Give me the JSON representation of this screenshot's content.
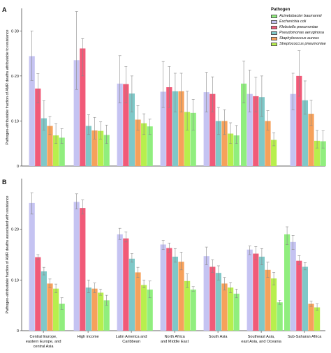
{
  "chart_data": [
    {
      "type": "bar",
      "panel_label": "A",
      "ylabel": "Pathogen-attributable fraction of AMR deaths attributable to resistance",
      "ylim": [
        0,
        0.35
      ],
      "yticks": [
        "0",
        "0·10",
        "0·20",
        "0·30"
      ],
      "categories": [
        "Central Europe, eastern Europe, and central Asia",
        "High income",
        "Latin America and Caribbean",
        "North Africa and Middle East",
        "South Asia",
        "Southeast Asia, east Asia, and Oceania",
        "Sub-Saharan Africa"
      ],
      "series": [
        {
          "name": "Acinetobacter baumannii",
          "values": [
            0,
            0,
            0,
            0,
            0,
            0.183,
            0
          ]
        },
        {
          "name": "Escherichia coli",
          "values": [
            0.244,
            0.235,
            0.183,
            0.165,
            0.164,
            0.16,
            0.16
          ]
        },
        {
          "name": "Klebsiella pneumoniae",
          "values": [
            0.172,
            0.261,
            0.182,
            0.175,
            0.16,
            0.155,
            0.2
          ]
        },
        {
          "name": "Pseudomonas aeruginosa",
          "values": [
            0.106,
            0.089,
            0.161,
            0.166,
            0.1,
            0.153,
            0.146
          ]
        },
        {
          "name": "Staphylococcus aureus",
          "values": [
            0.089,
            0.079,
            0.103,
            0.166,
            0.1,
            0.1,
            0.116
          ]
        },
        {
          "name": "Streptococcus pneumoniae",
          "values": [
            0.068,
            0.078,
            0.095,
            0.12,
            0.072,
            0.058,
            0.056
          ]
        },
        {
          "name": "",
          "values": [
            0.063,
            0.069,
            0.088,
            0.118,
            0.068,
            0,
            0.055
          ]
        }
      ],
      "error_low": [
        [
          0,
          0,
          0,
          0,
          0,
          0.14,
          0
        ],
        [
          0.19,
          0.17,
          0.14,
          0.13,
          0.12,
          0.12,
          0.125
        ],
        [
          0.14,
          0.2,
          0.14,
          0.13,
          0.12,
          0.12,
          0.155
        ],
        [
          0.08,
          0.07,
          0.12,
          0.12,
          0.07,
          0.11,
          0.115
        ],
        [
          0.07,
          0.06,
          0.08,
          0.12,
          0.07,
          0.08,
          0.09
        ],
        [
          0.05,
          0.06,
          0.07,
          0.08,
          0.05,
          0.045,
          0.04
        ],
        [
          0.05,
          0.05,
          0.07,
          0.08,
          0.05,
          0,
          0.04
        ]
      ],
      "error_high": [
        [
          0,
          0,
          0,
          0,
          0,
          0.233,
          0
        ],
        [
          0.3,
          0.343,
          0.245,
          0.232,
          0.208,
          0.213,
          0.206
        ],
        [
          0.205,
          0.283,
          0.221,
          0.221,
          0.198,
          0.197,
          0.256
        ],
        [
          0.145,
          0.114,
          0.2,
          0.206,
          0.13,
          0.2,
          0.189
        ],
        [
          0.11,
          0.108,
          0.134,
          0.206,
          0.125,
          0.123,
          0.146
        ],
        [
          0.094,
          0.098,
          0.116,
          0.166,
          0.096,
          0.074,
          0.079
        ],
        [
          0.083,
          0.091,
          0.104,
          0.148,
          0.09,
          0,
          0.078
        ]
      ]
    },
    {
      "type": "bar",
      "panel_label": "B",
      "ylabel": "Pathogen-attributable fraction of AMR deaths associated with resistance",
      "ylim": [
        0,
        0.3
      ],
      "yticks": [
        "0",
        "0·10",
        "0·20"
      ],
      "categories": [
        "Central Europe, eastern Europe, and central Asia",
        "High income",
        "Latin America and Caribbean",
        "North Africa and Middle East",
        "South Asia",
        "Southeast Asia, east Asia, and Oceania",
        "Sub-Saharan Africa"
      ],
      "series": [
        {
          "name": "Acinetobacter baumannii",
          "values": [
            0,
            0,
            0,
            0,
            0,
            0,
            0.19
          ]
        },
        {
          "name": "Escherichia coli",
          "values": [
            0.252,
            0.254,
            0.19,
            0.17,
            0.147,
            0.16,
            0.175
          ]
        },
        {
          "name": "Klebsiella pneumoniae",
          "values": [
            0.145,
            0.242,
            0.182,
            0.163,
            0.126,
            0.152,
            0.138
          ]
        },
        {
          "name": "Pseudomonas aeruginosa",
          "values": [
            0.117,
            0.085,
            0.142,
            0.146,
            0.114,
            0.146,
            0.126
          ]
        },
        {
          "name": "Staphylococcus aureus",
          "values": [
            0.093,
            0.083,
            0.115,
            0.136,
            0.093,
            0.12,
            0.053
          ]
        },
        {
          "name": "Streptococcus pneumoniae",
          "values": [
            0.083,
            0.075,
            0.09,
            0.098,
            0.085,
            0.103,
            0.046
          ]
        },
        {
          "name": "",
          "values": [
            0.053,
            0.06,
            0.081,
            0.081,
            0.073,
            0.056,
            0
          ]
        }
      ],
      "error_low": [
        [
          0,
          0,
          0,
          0,
          0,
          0,
          0.17
        ],
        [
          0.23,
          0.24,
          0.18,
          0.16,
          0.13,
          0.15,
          0.16
        ],
        [
          0.14,
          0.23,
          0.175,
          0.155,
          0.115,
          0.14,
          0.13
        ],
        [
          0.11,
          0.075,
          0.135,
          0.135,
          0.1,
          0.13,
          0.12
        ],
        [
          0.085,
          0.075,
          0.105,
          0.12,
          0.08,
          0.105,
          0.048
        ],
        [
          0.075,
          0.07,
          0.085,
          0.085,
          0.075,
          0.09,
          0.04
        ],
        [
          0.042,
          0.05,
          0.065,
          0.078,
          0.065,
          0.052,
          0
        ]
      ],
      "error_high": [
        [
          0,
          0,
          0,
          0,
          0,
          0,
          0.205
        ],
        [
          0.272,
          0.27,
          0.202,
          0.178,
          0.165,
          0.167,
          0.188
        ],
        [
          0.15,
          0.258,
          0.195,
          0.173,
          0.14,
          0.166,
          0.148
        ],
        [
          0.125,
          0.1,
          0.152,
          0.162,
          0.128,
          0.162,
          0.134
        ],
        [
          0.102,
          0.094,
          0.125,
          0.155,
          0.105,
          0.135,
          0.058
        ],
        [
          0.092,
          0.082,
          0.1,
          0.112,
          0.095,
          0.115,
          0.053
        ],
        [
          0.065,
          0.07,
          0.098,
          0.087,
          0.082,
          0.06,
          0
        ]
      ]
    }
  ],
  "legend": {
    "title": "Pathogen",
    "items": [
      {
        "label": "Acinetobacter baumannii",
        "color": "#90ee7e"
      },
      {
        "label": "Escherichia coli",
        "color": "#c5c3f2"
      },
      {
        "label": "Klebsiella pneumoniae",
        "color": "#f15a78"
      },
      {
        "label": "Pseudomonas aeruginosa",
        "color": "#7fc8c8"
      },
      {
        "label": "Staphylococcus aureus",
        "color": "#f6a15b"
      },
      {
        "label": "Streptococcus pneumoniae",
        "color": "#b7ef4d"
      }
    ]
  },
  "bar_colors": [
    "#90ee7e",
    "#c5c3f2",
    "#f15a78",
    "#7fc8c8",
    "#f6a15b",
    "#b7ef4d",
    "#90ee7e"
  ],
  "x_tick_labels": [
    [
      "Central Europe,",
      "eastern Europe, and",
      "central Asia"
    ],
    [
      "High income"
    ],
    [
      "Latin America and",
      "Caribbean"
    ],
    [
      "North Africa",
      "and Middle East"
    ],
    [
      "South Asia"
    ],
    [
      "Southeast Asia,",
      "east Asia, and Oceania"
    ],
    [
      "Sub-Saharan Africa"
    ]
  ]
}
